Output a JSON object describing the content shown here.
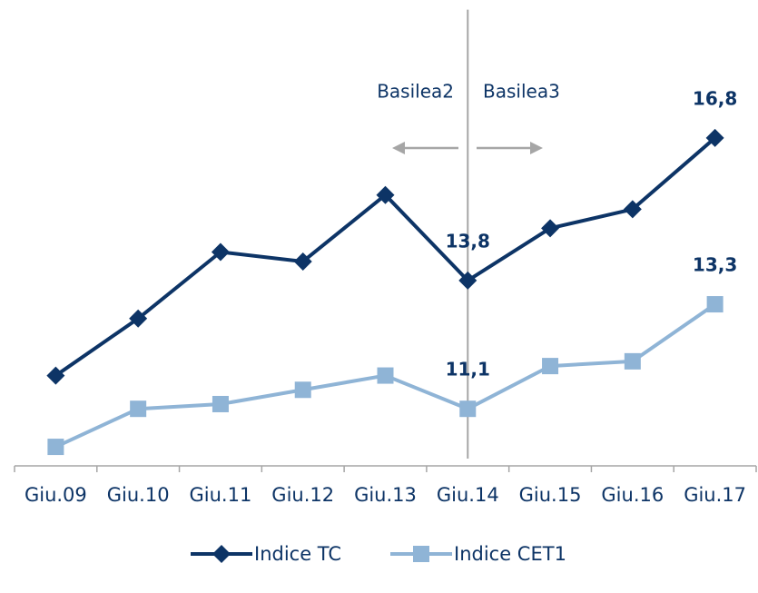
{
  "chart_data": {
    "type": "line",
    "categories": [
      "Giu.09",
      "Giu.10",
      "Giu.11",
      "Giu.12",
      "Giu.13",
      "Giu.14",
      "Giu.15",
      "Giu.16",
      "Giu.17"
    ],
    "series": [
      {
        "name": "Indice TC",
        "color": "#0d3466",
        "marker": "diamond",
        "values": [
          11.8,
          13.0,
          14.4,
          14.2,
          15.6,
          13.8,
          14.9,
          15.3,
          16.8
        ],
        "value_labels": [
          null,
          null,
          null,
          null,
          null,
          "13,8",
          null,
          null,
          "16,8"
        ]
      },
      {
        "name": "Indice CET1",
        "color": "#8fb4d6",
        "marker": "square",
        "values": [
          10.3,
          11.1,
          11.2,
          11.5,
          11.8,
          11.1,
          12.0,
          12.1,
          13.3
        ],
        "value_labels": [
          null,
          null,
          null,
          null,
          null,
          "11,1",
          null,
          null,
          "13,3"
        ]
      }
    ],
    "annotations": [
      "Basilea2",
      "Basilea3"
    ],
    "ylim": [
      9.9,
      19.5
    ],
    "legend": "bottom"
  }
}
